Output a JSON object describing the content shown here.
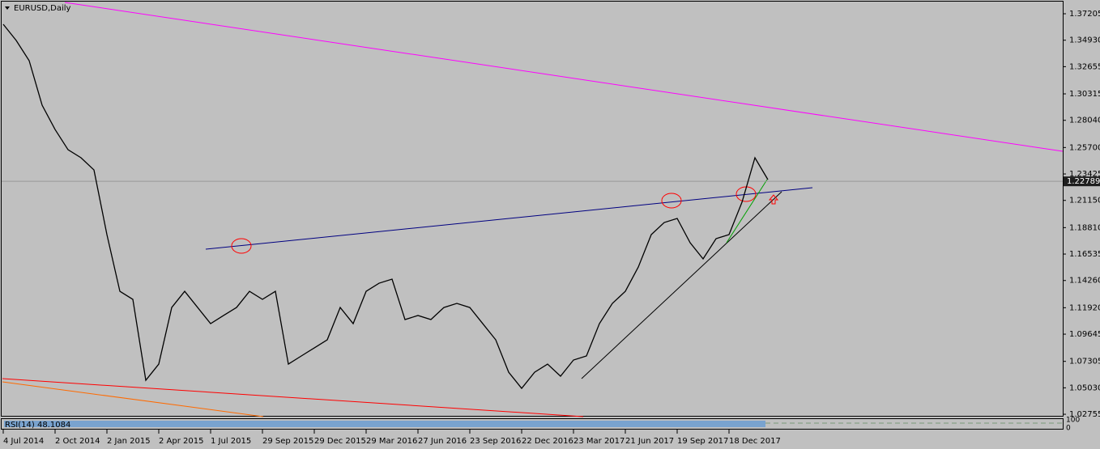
{
  "chart_data": {
    "type": "line",
    "title": "EURUSD,Daily",
    "categories": [
      "4 Jul 2014",
      null,
      null,
      null,
      "2 Oct 2014",
      null,
      null,
      null,
      "2 Jan 2015",
      null,
      null,
      null,
      "2 Apr 2015",
      null,
      null,
      null,
      "1 Jul 2015",
      null,
      null,
      null,
      "29 Sep 2015",
      null,
      null,
      null,
      "29 Dec 2015",
      null,
      null,
      null,
      "29 Mar 2016",
      null,
      null,
      null,
      "27 Jun 2016",
      null,
      null,
      null,
      "23 Sep 2016",
      null,
      null,
      null,
      "22 Dec 2016",
      null,
      null,
      null,
      "23 Mar 2017",
      null,
      null,
      null,
      "21 Jun 2017",
      null,
      null,
      null,
      "19 Sep 2017",
      null,
      null,
      null,
      "18 Dec 2017",
      null,
      null,
      null
    ],
    "series": [
      {
        "name": "EURUSD",
        "color": "#000000",
        "values": [
          1.363,
          1.3491,
          1.3317,
          1.2934,
          1.2725,
          1.2551,
          1.2482,
          1.2377,
          1.1821,
          1.1333,
          1.1264,
          1.0568,
          1.0707,
          1.1194,
          1.1333,
          1.1194,
          1.1055,
          1.1125,
          1.1194,
          1.1333,
          1.1264,
          1.1333,
          1.0707,
          1.0777,
          1.0846,
          1.0916,
          1.1194,
          1.1055,
          1.1333,
          1.1403,
          1.1438,
          1.109,
          1.1125,
          1.109,
          1.1194,
          1.1229,
          1.1194,
          1.1055,
          1.0916,
          1.0637,
          1.0498,
          1.0637,
          1.0707,
          1.0603,
          1.0742,
          1.0777,
          1.1055,
          1.1229,
          1.1333,
          1.1542,
          1.1821,
          1.1925,
          1.196,
          1.1751,
          1.1612,
          1.1786,
          1.1821,
          1.2099,
          1.2482,
          1.2294
        ]
      }
    ],
    "ylim": [
      1.0262,
      1.3818
    ],
    "yticks": [
      1.37205,
      {
        "value": 1.3493,
        "label": "1.34930"
      },
      1.32655,
      1.30315,
      {
        "value": 1.2804,
        "label": "1.28040"
      },
      {
        "value": 1.257,
        "label": "1.25700"
      },
      1.23425,
      {
        "value": 1.2115,
        "label": "1.21150"
      },
      {
        "value": 1.1881,
        "label": "1.18810"
      },
      1.16535,
      {
        "value": 1.1426,
        "label": "1.14260"
      },
      {
        "value": 1.1192,
        "label": "1.11920"
      },
      1.09645,
      1.07305,
      {
        "value": 1.0503,
        "label": "1.05030"
      },
      1.02755
    ],
    "current_price": 1.22789,
    "rsi": {
      "label": "RSI(14) 48.1084",
      "ylim": [
        0,
        100
      ],
      "yticks": [
        100,
        0
      ]
    }
  }
}
